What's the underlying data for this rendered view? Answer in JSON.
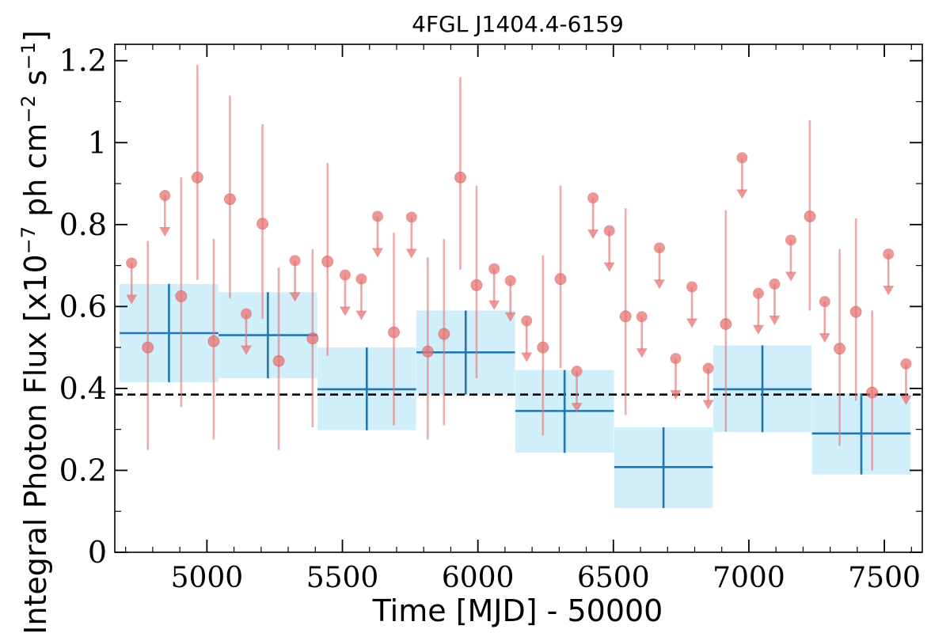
{
  "chart_data": {
    "type": "scatter",
    "title": "4FGL J1404.4-6159",
    "xlabel": "Time [MJD] - 50000",
    "ylabel": "Integral Photon Flux [x10",
    "ylabel_exp": "−7",
    "ylabel_unit": " ph cm",
    "ylabel_unit_exp": "−2",
    "ylabel_s": " s",
    "ylabel_s_exp": "−1",
    "ylabel_end": "]",
    "xlim": [
      4660,
      7640
    ],
    "ylim": [
      0,
      1.24
    ],
    "x_ticks": [
      5000,
      5500,
      6000,
      6500,
      7000,
      7500
    ],
    "x_tick_labels": [
      "5000",
      "5500",
      "6000",
      "6500",
      "7000",
      "7500"
    ],
    "y_ticks": [
      0,
      0.2,
      0.4,
      0.6,
      0.8,
      1.0,
      1.2
    ],
    "y_tick_labels": [
      "0",
      "0.2",
      "0.4",
      "0.6",
      "0.8",
      "1",
      "1.2"
    ],
    "mean_flux": 0.385,
    "colors": {
      "points": "#e57373",
      "bins": "#1f77b4",
      "band": "#d1eefb",
      "mean": "#000000"
    },
    "binned": [
      {
        "x": 4860,
        "xerr": 182,
        "y": 0.535,
        "ylow": 0.415,
        "yhigh": 0.655
      },
      {
        "x": 5225,
        "xerr": 182,
        "y": 0.53,
        "ylow": 0.425,
        "yhigh": 0.635
      },
      {
        "x": 5590,
        "xerr": 182,
        "y": 0.398,
        "ylow": 0.298,
        "yhigh": 0.5
      },
      {
        "x": 5955,
        "xerr": 182,
        "y": 0.488,
        "ylow": 0.385,
        "yhigh": 0.59
      },
      {
        "x": 6320,
        "xerr": 182,
        "y": 0.345,
        "ylow": 0.243,
        "yhigh": 0.445
      },
      {
        "x": 6685,
        "xerr": 182,
        "y": 0.208,
        "ylow": 0.108,
        "yhigh": 0.305
      },
      {
        "x": 7050,
        "xerr": 182,
        "y": 0.398,
        "ylow": 0.293,
        "yhigh": 0.505
      },
      {
        "x": 7415,
        "xerr": 182,
        "y": 0.29,
        "ylow": 0.19,
        "yhigh": 0.388
      }
    ],
    "detections": [
      {
        "x": 4782,
        "y": 0.5,
        "ylow": 0.25,
        "yhigh": 0.76
      },
      {
        "x": 4905,
        "y": 0.625,
        "ylow": 0.355,
        "yhigh": 0.915
      },
      {
        "x": 4965,
        "y": 0.915,
        "ylow": 0.665,
        "yhigh": 1.19
      },
      {
        "x": 5025,
        "y": 0.515,
        "ylow": 0.275,
        "yhigh": 0.765
      },
      {
        "x": 5085,
        "y": 0.862,
        "ylow": 0.62,
        "yhigh": 1.115
      },
      {
        "x": 5205,
        "y": 0.802,
        "ylow": 0.57,
        "yhigh": 1.045
      },
      {
        "x": 5265,
        "y": 0.467,
        "ylow": 0.25,
        "yhigh": 0.695
      },
      {
        "x": 5390,
        "y": 0.522,
        "ylow": 0.305,
        "yhigh": 0.74
      },
      {
        "x": 5445,
        "y": 0.71,
        "ylow": 0.48,
        "yhigh": 0.95
      },
      {
        "x": 5690,
        "y": 0.537,
        "ylow": 0.31,
        "yhigh": 0.78
      },
      {
        "x": 5815,
        "y": 0.49,
        "ylow": 0.275,
        "yhigh": 0.72
      },
      {
        "x": 5875,
        "y": 0.533,
        "ylow": 0.31,
        "yhigh": 0.765
      },
      {
        "x": 5935,
        "y": 0.915,
        "ylow": 0.69,
        "yhigh": 1.16
      },
      {
        "x": 5995,
        "y": 0.652,
        "ylow": 0.425,
        "yhigh": 0.895
      },
      {
        "x": 6240,
        "y": 0.5,
        "ylow": 0.285,
        "yhigh": 0.725
      },
      {
        "x": 6305,
        "y": 0.667,
        "ylow": 0.45,
        "yhigh": 0.895
      },
      {
        "x": 6545,
        "y": 0.576,
        "ylow": 0.335,
        "yhigh": 0.84
      },
      {
        "x": 7225,
        "y": 0.82,
        "ylow": 0.59,
        "yhigh": 1.055
      },
      {
        "x": 6915,
        "y": 0.557,
        "ylow": 0.295,
        "yhigh": 0.835
      },
      {
        "x": 7335,
        "y": 0.497,
        "ylow": 0.26,
        "yhigh": 0.74
      },
      {
        "x": 7395,
        "y": 0.587,
        "ylow": 0.37,
        "yhigh": 0.815
      },
      {
        "x": 7455,
        "y": 0.39,
        "ylow": 0.2,
        "yhigh": 0.59
      }
    ],
    "upper_limits": [
      {
        "x": 4722,
        "y": 0.706
      },
      {
        "x": 4845,
        "y": 0.871
      },
      {
        "x": 5145,
        "y": 0.582
      },
      {
        "x": 5325,
        "y": 0.712
      },
      {
        "x": 5510,
        "y": 0.677
      },
      {
        "x": 5570,
        "y": 0.667
      },
      {
        "x": 5630,
        "y": 0.82
      },
      {
        "x": 5755,
        "y": 0.818
      },
      {
        "x": 6060,
        "y": 0.692
      },
      {
        "x": 6120,
        "y": 0.663
      },
      {
        "x": 6180,
        "y": 0.565
      },
      {
        "x": 6365,
        "y": 0.442
      },
      {
        "x": 6425,
        "y": 0.865
      },
      {
        "x": 6485,
        "y": 0.785
      },
      {
        "x": 6605,
        "y": 0.575
      },
      {
        "x": 6670,
        "y": 0.743
      },
      {
        "x": 6730,
        "y": 0.473
      },
      {
        "x": 6790,
        "y": 0.648
      },
      {
        "x": 6850,
        "y": 0.449
      },
      {
        "x": 6975,
        "y": 0.963
      },
      {
        "x": 7035,
        "y": 0.632
      },
      {
        "x": 7095,
        "y": 0.655
      },
      {
        "x": 7155,
        "y": 0.762
      },
      {
        "x": 7280,
        "y": 0.612
      },
      {
        "x": 7515,
        "y": 0.728
      },
      {
        "x": 7580,
        "y": 0.46
      }
    ]
  }
}
